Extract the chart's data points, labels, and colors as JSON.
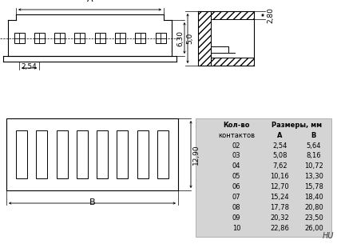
{
  "background_color": "#ffffff",
  "title_text": "HU",
  "table_header1": "Кол-во",
  "table_header2": "Размеры, мм",
  "table_col1": "контактов",
  "table_col2": "A",
  "table_col3": "B",
  "table_rows": [
    [
      "02",
      "2,54",
      "5,64"
    ],
    [
      "03",
      "5,08",
      "8,16"
    ],
    [
      "04",
      "7,62",
      "10,72"
    ],
    [
      "05",
      "10,16",
      "13,30"
    ],
    [
      "06",
      "12,70",
      "15,78"
    ],
    [
      "07",
      "15,24",
      "18,40"
    ],
    [
      "08",
      "17,78",
      "20,80"
    ],
    [
      "09",
      "20,32",
      "23,50"
    ],
    [
      "10",
      "22,86",
      "26,00"
    ]
  ],
  "table_bg": "#d4d4d4",
  "line_color": "#000000",
  "label_5_0": "5,0",
  "label_2_54": "2,54",
  "label_A": "A",
  "label_B": "B",
  "label_6_30": "6,30",
  "label_2_80": "2,80",
  "label_12_90": "12,90",
  "n_pins": 8
}
